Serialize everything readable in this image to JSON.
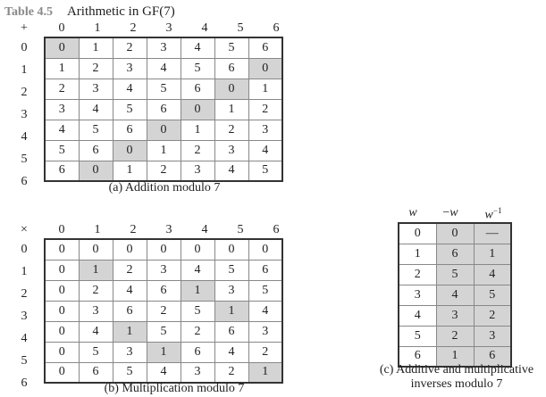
{
  "header": {
    "table_label": "Table 4.5",
    "table_title": "Arithmetic in GF(7)"
  },
  "addition": {
    "operator": "+",
    "col_headers": [
      "0",
      "1",
      "2",
      "3",
      "4",
      "5",
      "6"
    ],
    "row_headers": [
      "0",
      "1",
      "2",
      "3",
      "4",
      "5",
      "6"
    ],
    "rows": [
      [
        "0",
        "1",
        "2",
        "3",
        "4",
        "5",
        "6"
      ],
      [
        "1",
        "2",
        "3",
        "4",
        "5",
        "6",
        "0"
      ],
      [
        "2",
        "3",
        "4",
        "5",
        "6",
        "0",
        "1"
      ],
      [
        "3",
        "4",
        "5",
        "6",
        "0",
        "1",
        "2"
      ],
      [
        "4",
        "5",
        "6",
        "0",
        "1",
        "2",
        "3"
      ],
      [
        "5",
        "6",
        "0",
        "1",
        "2",
        "3",
        "4"
      ],
      [
        "6",
        "0",
        "1",
        "2",
        "3",
        "4",
        "5"
      ]
    ],
    "highlighted_value": "0",
    "caption": "(a) Addition modulo 7"
  },
  "multiplication": {
    "operator": "×",
    "col_headers": [
      "0",
      "1",
      "2",
      "3",
      "4",
      "5",
      "6"
    ],
    "row_headers": [
      "0",
      "1",
      "2",
      "3",
      "4",
      "5",
      "6"
    ],
    "rows": [
      [
        "0",
        "0",
        "0",
        "0",
        "0",
        "0",
        "0"
      ],
      [
        "0",
        "1",
        "2",
        "3",
        "4",
        "5",
        "6"
      ],
      [
        "0",
        "2",
        "4",
        "6",
        "1",
        "3",
        "5"
      ],
      [
        "0",
        "3",
        "6",
        "2",
        "5",
        "1",
        "4"
      ],
      [
        "0",
        "4",
        "1",
        "5",
        "2",
        "6",
        "3"
      ],
      [
        "0",
        "5",
        "3",
        "1",
        "6",
        "4",
        "2"
      ],
      [
        "0",
        "6",
        "5",
        "4",
        "3",
        "2",
        "1"
      ]
    ],
    "highlighted_value": "1",
    "caption": "(b) Multiplication modulo 7"
  },
  "inverses": {
    "headers": {
      "w": "w",
      "neg_w_minus": "−",
      "neg_w_var": "w",
      "inv_var": "w",
      "inv_exp": "−1"
    },
    "rows": [
      [
        "0",
        "0",
        "—"
      ],
      [
        "1",
        "6",
        "1"
      ],
      [
        "2",
        "5",
        "4"
      ],
      [
        "3",
        "4",
        "5"
      ],
      [
        "4",
        "3",
        "2"
      ],
      [
        "5",
        "2",
        "3"
      ],
      [
        "6",
        "1",
        "6"
      ]
    ],
    "caption_line1": "(c) Additive and multiplicative",
    "caption_line2": "inverses modulo 7"
  },
  "colors": {
    "highlight": "#d4d4d4",
    "border": "#333333",
    "label_gray": "#8a8a8a"
  }
}
